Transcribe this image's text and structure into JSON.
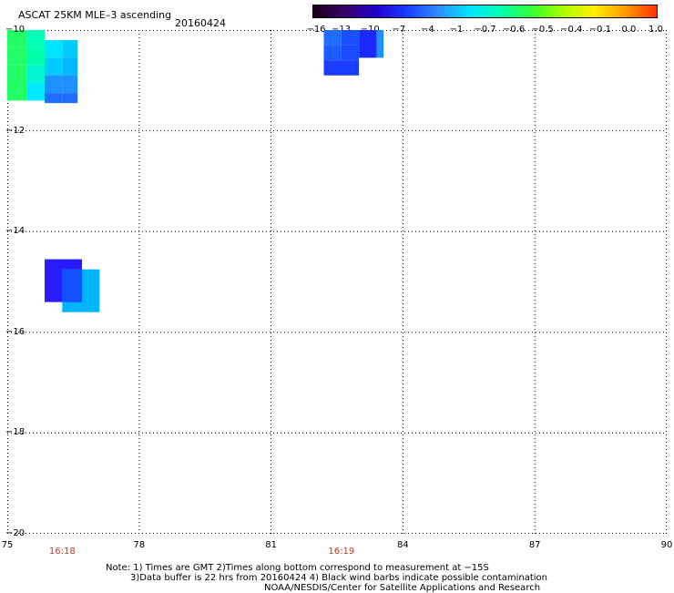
{
  "header": {
    "title": "ASCAT 25KM MLE–3 ascending",
    "date": "20160424"
  },
  "colorbar": {
    "labels": [
      "−16",
      "−13",
      "−10",
      "−7",
      "−4",
      "−1",
      "−0.7",
      "−0.6",
      "−0.5",
      "−0.4",
      "−0.1",
      "0.0",
      "1.0"
    ],
    "colors": [
      "#1a0018",
      "#3a0066",
      "#2200cc",
      "#1a3cff",
      "#2f8cff",
      "#00e5ff",
      "#00ffb0",
      "#33ff33",
      "#aaff00",
      "#ffee00",
      "#ff9900",
      "#ff3300"
    ]
  },
  "axes": {
    "y_labels": [
      "−10",
      "−12",
      "−14",
      "−16",
      "−18",
      "−20"
    ],
    "x_labels": [
      "75",
      "78",
      "81",
      "84",
      "87",
      "90"
    ],
    "lat_range": [
      -20,
      -10
    ],
    "lon_range": [
      75,
      90
    ]
  },
  "times": [
    {
      "label": "16:18",
      "lon": 76.25
    },
    {
      "label": "16:19",
      "lon": 82.6
    }
  ],
  "cells": [
    {
      "lon": 75.0,
      "lat": -10.0,
      "dlon": 0.45,
      "dlat": 0.35,
      "color": "#22ff66"
    },
    {
      "lon": 75.0,
      "lat": -10.35,
      "dlon": 0.45,
      "dlat": 0.35,
      "color": "#22ff66"
    },
    {
      "lon": 75.0,
      "lat": -10.7,
      "dlon": 0.45,
      "dlat": 0.35,
      "color": "#22ff66"
    },
    {
      "lon": 75.0,
      "lat": -11.05,
      "dlon": 0.45,
      "dlat": 0.35,
      "color": "#22ff66"
    },
    {
      "lon": 75.45,
      "lat": -10.0,
      "dlon": 0.4,
      "dlat": 0.35,
      "color": "#00ffbb"
    },
    {
      "lon": 75.45,
      "lat": -10.35,
      "dlon": 0.4,
      "dlat": 0.35,
      "color": "#00ffaa"
    },
    {
      "lon": 75.45,
      "lat": -10.7,
      "dlon": 0.4,
      "dlat": 0.35,
      "color": "#00f5d0"
    },
    {
      "lon": 75.45,
      "lat": -11.05,
      "dlon": 0.4,
      "dlat": 0.35,
      "color": "#00e8ff"
    },
    {
      "lon": 75.85,
      "lat": -10.2,
      "dlon": 0.4,
      "dlat": 0.35,
      "color": "#00e5ff"
    },
    {
      "lon": 75.85,
      "lat": -10.55,
      "dlon": 0.4,
      "dlat": 0.35,
      "color": "#00ccff"
    },
    {
      "lon": 75.85,
      "lat": -10.9,
      "dlon": 0.4,
      "dlat": 0.35,
      "color": "#1e90ff"
    },
    {
      "lon": 75.85,
      "lat": -11.25,
      "dlon": 0.4,
      "dlat": 0.2,
      "color": "#1e6dff"
    },
    {
      "lon": 76.25,
      "lat": -10.2,
      "dlon": 0.35,
      "dlat": 0.35,
      "color": "#00ccff"
    },
    {
      "lon": 76.25,
      "lat": -10.55,
      "dlon": 0.35,
      "dlat": 0.35,
      "color": "#00b8ff"
    },
    {
      "lon": 76.25,
      "lat": -10.9,
      "dlon": 0.35,
      "dlat": 0.35,
      "color": "#1e90ff"
    },
    {
      "lon": 76.25,
      "lat": -11.25,
      "dlon": 0.35,
      "dlat": 0.2,
      "color": "#1e6dff"
    },
    {
      "lon": 75.85,
      "lat": -14.55,
      "dlon": 0.85,
      "dlat": 0.85,
      "color": "#2a1aff"
    },
    {
      "lon": 76.25,
      "lat": -14.75,
      "dlon": 0.85,
      "dlat": 0.85,
      "color": "#00b4ff"
    },
    {
      "lon": 76.25,
      "lat": -14.75,
      "dlon": 0.45,
      "dlat": 0.65,
      "color": "#1450ff"
    },
    {
      "lon": 82.2,
      "lat": -10.0,
      "dlon": 0.4,
      "dlat": 0.3,
      "color": "#1e6dff"
    },
    {
      "lon": 82.2,
      "lat": -10.3,
      "dlon": 0.4,
      "dlat": 0.3,
      "color": "#1a5cff"
    },
    {
      "lon": 82.2,
      "lat": -10.6,
      "dlon": 0.8,
      "dlat": 0.3,
      "color": "#1a3cff"
    },
    {
      "lon": 82.6,
      "lat": -10.0,
      "dlon": 0.4,
      "dlat": 0.3,
      "color": "#1a50ff"
    },
    {
      "lon": 82.6,
      "lat": -10.3,
      "dlon": 0.4,
      "dlat": 0.3,
      "color": "#1a4cff"
    },
    {
      "lon": 83.0,
      "lat": -10.0,
      "dlon": 0.4,
      "dlat": 0.55,
      "color": "#1a2aff"
    },
    {
      "lon": 83.4,
      "lat": -10.0,
      "dlon": 0.16,
      "dlat": 0.55,
      "color": "#1e90ff"
    }
  ],
  "notes": {
    "line1": "Note: 1) Times are GMT 2)Times along bottom correspond to measurement at −15S",
    "line2": "3)Data buffer is 22 hrs from 20160424 4) Black wind barbs indicate possible contamination",
    "line3": "NOAA/NESDIS/Center for Satellite Applications and Research"
  }
}
